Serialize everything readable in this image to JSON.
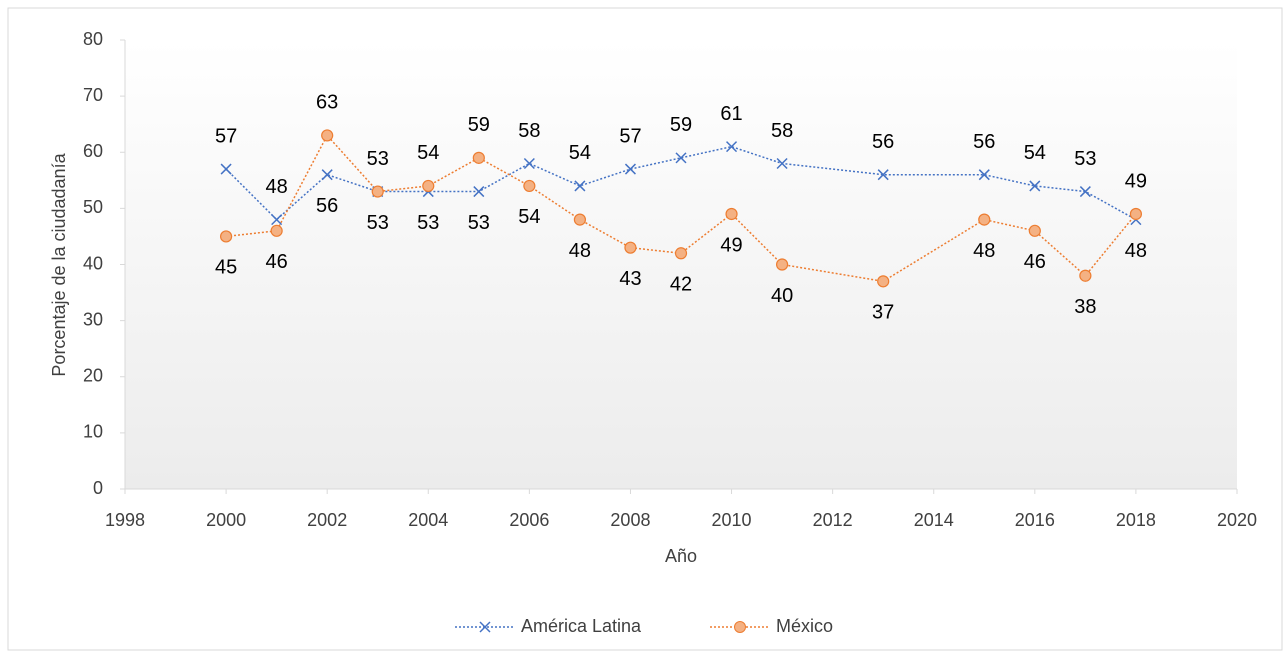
{
  "chart_data": {
    "type": "line",
    "x_label": "Año",
    "y_label": "Porcentaje de la ciudadanía",
    "x": [
      2000,
      2001,
      2002,
      2003,
      2004,
      2005,
      2006,
      2007,
      2008,
      2009,
      2010,
      2011,
      2013,
      2015,
      2016,
      2017,
      2018
    ],
    "series": [
      {
        "name": "América Latina",
        "color": "#4472c4",
        "marker": "x",
        "values": [
          57,
          48,
          56,
          53,
          53,
          53,
          58,
          54,
          57,
          59,
          61,
          58,
          56,
          56,
          54,
          53,
          48
        ]
      },
      {
        "name": "México",
        "color": "#ed7d31",
        "marker": "circle",
        "values": [
          45,
          46,
          63,
          53,
          54,
          59,
          54,
          48,
          43,
          42,
          49,
          40,
          37,
          48,
          46,
          38,
          49
        ]
      }
    ],
    "xlim": [
      1998,
      2020
    ],
    "xticks": [
      1998,
      2000,
      2002,
      2004,
      2006,
      2008,
      2010,
      2012,
      2014,
      2016,
      2018,
      2020
    ],
    "ylim": [
      0,
      80
    ],
    "yticks": [
      0,
      10,
      20,
      30,
      40,
      50,
      60,
      70,
      80
    ],
    "legend": "bottom"
  }
}
